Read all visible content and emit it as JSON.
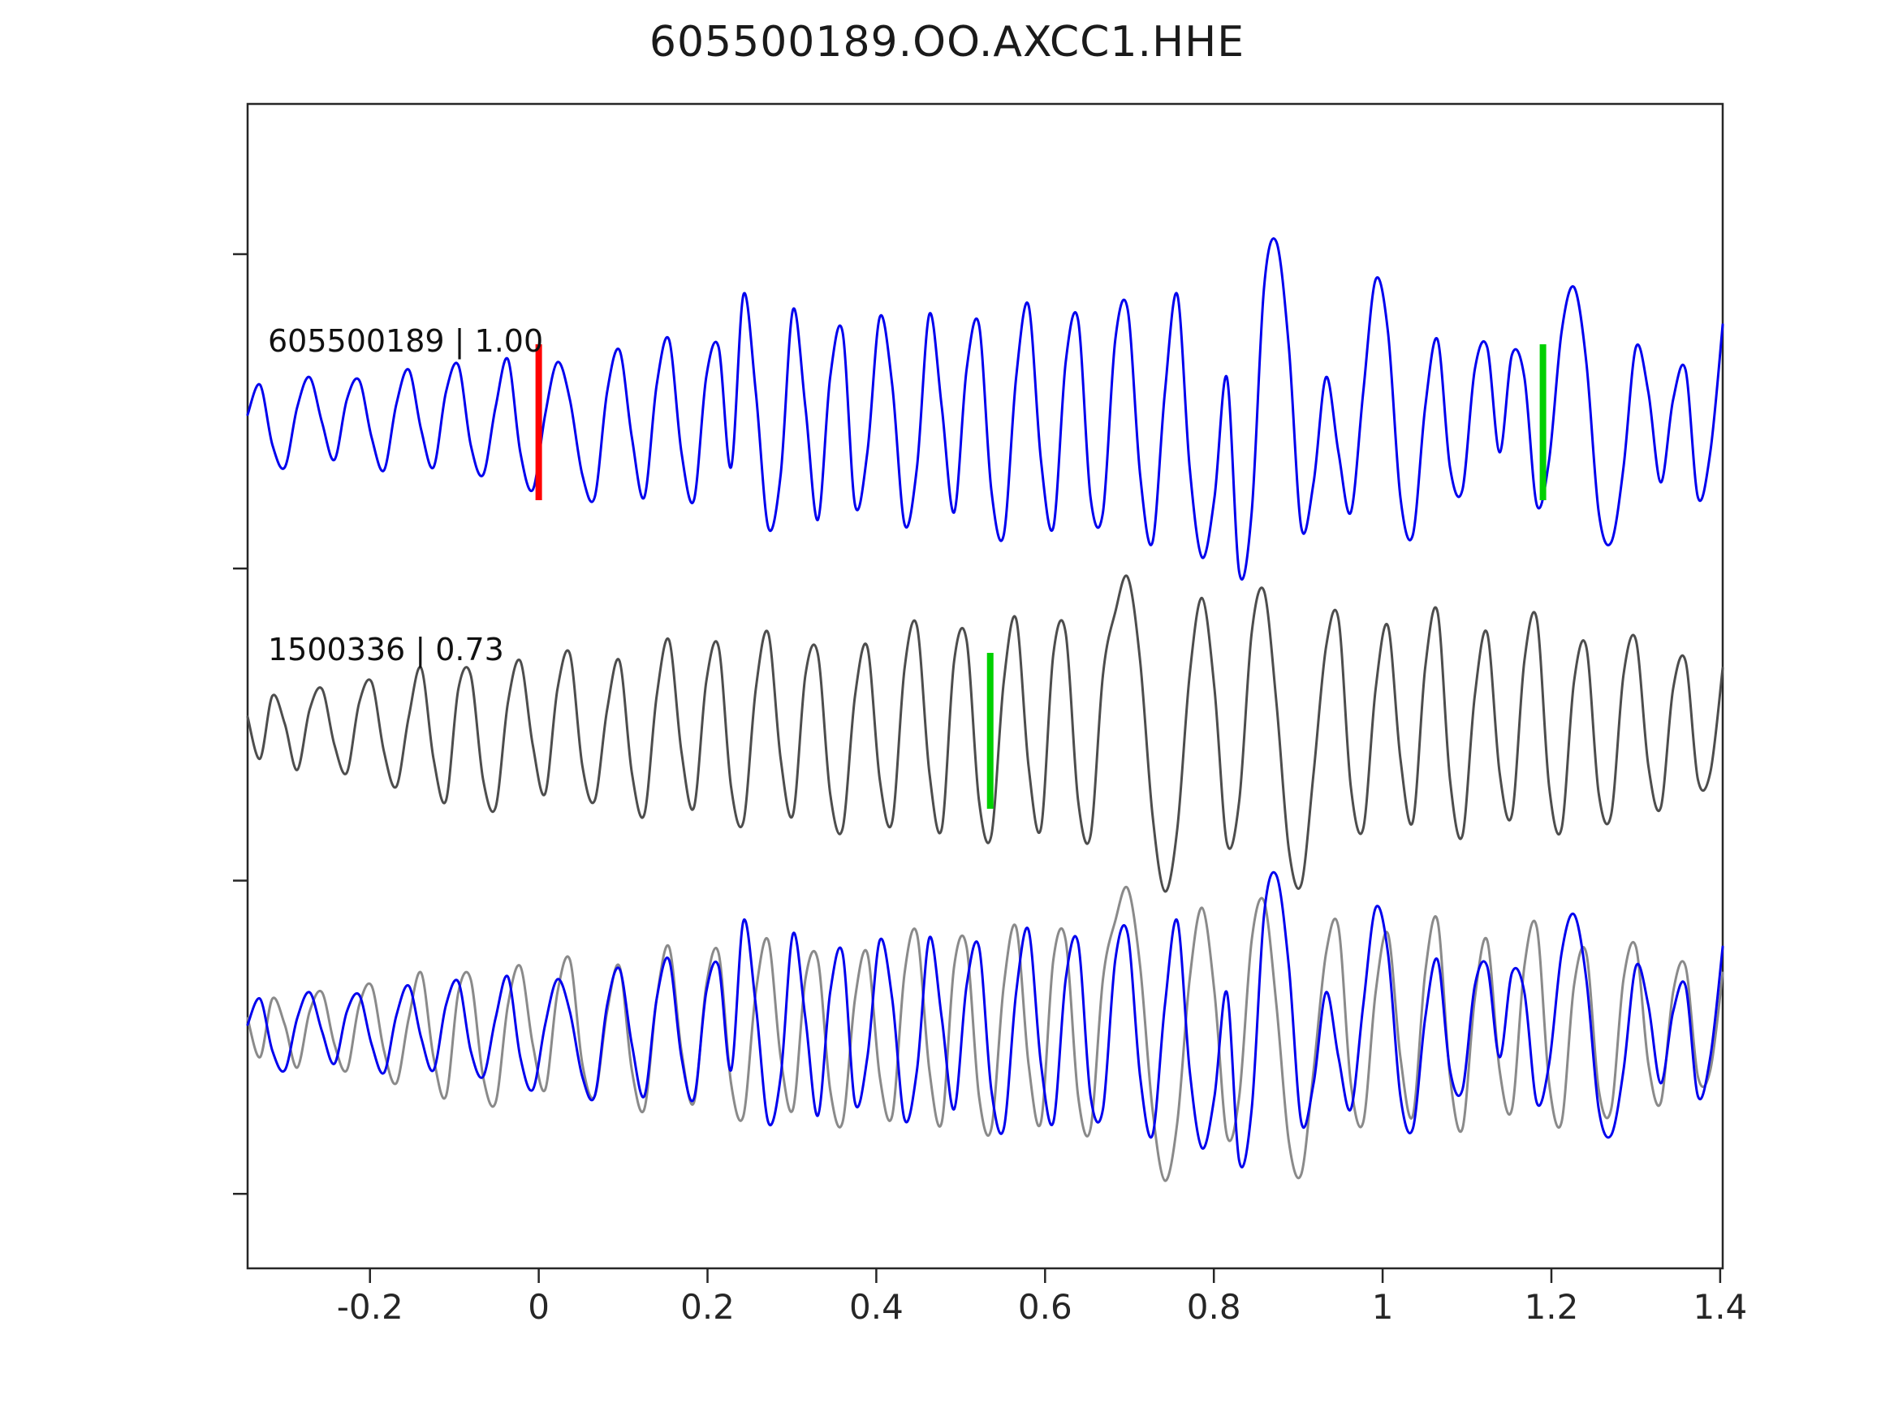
{
  "title": "605500189.OO.AXCC1.HHE",
  "colors": {
    "template_trace": "#0000ee",
    "detection_trace": "#4d4d4d",
    "overlay_detection_trace": "#8a8a8a",
    "pick_red": "#ff0000",
    "pick_green": "#00d000",
    "axis": "#262626",
    "text": "#111111"
  },
  "chart_data": {
    "type": "line",
    "title": "605500189.OO.AXCC1.HHE",
    "xlabel": "",
    "ylabel": "",
    "grid": false,
    "legend": "none",
    "xlim": [
      -0.345,
      1.403
    ],
    "x_ticks": [
      -0.2,
      0,
      0.2,
      0.4,
      0.6,
      0.8,
      1,
      1.2,
      1.4
    ],
    "x_tick_labels": [
      "-0.2",
      "0",
      "0.2",
      "0.4",
      "0.6",
      "0.8",
      "1",
      "1.2",
      "1.4"
    ],
    "note": "Waveform amplitudes are unlabeled in the figure; values below are normalized estimates sampled uniformly across xlim.",
    "traces": [
      {
        "name": "template",
        "label": "605500189 | 1.00",
        "id": "605500189",
        "correlation": "1.00",
        "color_key": "template_trace",
        "row": 0,
        "picks": [
          {
            "x": 0.0,
            "color_key": "pick_red",
            "name": "template-red-pick"
          },
          {
            "x": 1.19,
            "color_key": "pick_green",
            "name": "template-green-pick"
          }
        ],
        "values": [
          0.05,
          0.25,
          -0.15,
          -0.3,
          0.1,
          0.3,
          0.0,
          -0.25,
          0.15,
          0.28,
          -0.1,
          -0.32,
          0.12,
          0.35,
          -0.05,
          -0.3,
          0.2,
          0.38,
          -0.15,
          -0.35,
          0.1,
          0.42,
          -0.2,
          -0.45,
          0.05,
          0.4,
          0.15,
          -0.35,
          -0.5,
          0.2,
          0.48,
          -0.1,
          -0.5,
          0.25,
          0.55,
          -0.2,
          -0.52,
          0.3,
          0.5,
          -0.3,
          0.85,
          0.2,
          -0.7,
          -0.35,
          0.75,
          0.1,
          -0.65,
          0.3,
          0.6,
          -0.55,
          -0.2,
          0.7,
          0.25,
          -0.68,
          -0.3,
          0.72,
          0.1,
          -0.6,
          0.35,
          0.65,
          -0.45,
          -0.75,
          0.3,
          0.78,
          -0.25,
          -0.7,
          0.4,
          0.68,
          -0.5,
          -0.6,
          0.55,
          0.75,
          -0.35,
          -0.8,
          0.2,
          0.85,
          -0.3,
          -0.9,
          -0.5,
          0.3,
          -1.0,
          -0.6,
          0.9,
          1.2,
          0.5,
          -0.7,
          -0.4,
          0.3,
          -0.2,
          -0.6,
          0.2,
          0.95,
          0.6,
          -0.5,
          -0.75,
          0.1,
          0.55,
          -0.3,
          -0.45,
          0.35,
          0.5,
          -0.2,
          0.45,
          0.3,
          -0.55,
          -0.25,
          0.6,
          0.9,
          0.4,
          -0.6,
          -0.8,
          -0.3,
          0.5,
          0.2,
          -0.4,
          0.15,
          0.35,
          -0.5,
          -0.2,
          0.65
        ]
      },
      {
        "name": "detection",
        "label": "1500336 | 0.73",
        "id": "1500336",
        "correlation": "0.73",
        "color_key": "detection_trace",
        "row": 1,
        "picks": [
          {
            "x": 0.535,
            "color_key": "pick_green",
            "name": "detection-green-pick"
          }
        ],
        "values": [
          0.1,
          -0.2,
          0.25,
          0.05,
          -0.28,
          0.15,
          0.3,
          -0.1,
          -0.3,
          0.2,
          0.35,
          -0.15,
          -0.4,
          0.1,
          0.45,
          -0.2,
          -0.5,
          0.3,
          0.4,
          -0.35,
          -0.55,
          0.2,
          0.5,
          -0.1,
          -0.45,
          0.3,
          0.55,
          -0.25,
          -0.5,
          0.15,
          0.5,
          -0.3,
          -0.6,
          0.25,
          0.65,
          -0.15,
          -0.55,
          0.35,
          0.6,
          -0.4,
          -0.65,
          0.3,
          0.7,
          -0.2,
          -0.6,
          0.4,
          0.55,
          -0.45,
          -0.7,
          0.25,
          0.6,
          -0.35,
          -0.65,
          0.45,
          0.75,
          -0.3,
          -0.7,
          0.5,
          0.65,
          -0.5,
          -0.75,
          0.35,
          0.8,
          -0.25,
          -0.7,
          0.55,
          0.7,
          -0.5,
          -0.75,
          0.4,
          0.85,
          1.1,
          0.5,
          -0.6,
          -1.15,
          -0.7,
          0.4,
          0.95,
          0.3,
          -0.8,
          -0.5,
          0.7,
          1.0,
          0.2,
          -0.85,
          -1.1,
          -0.3,
          0.6,
          0.8,
          -0.4,
          -0.7,
          0.3,
          0.75,
          -0.2,
          -0.65,
          0.45,
          0.85,
          -0.35,
          -0.75,
          0.25,
          0.7,
          -0.3,
          -0.6,
          0.5,
          0.8,
          -0.4,
          -0.7,
          0.35,
          0.6,
          -0.45,
          -0.6,
          0.4,
          0.65,
          -0.25,
          -0.55,
          0.3,
          0.5,
          -0.35,
          -0.3,
          0.45
        ]
      },
      {
        "name": "overlay",
        "label": "",
        "row": 2,
        "components": [
          {
            "use": "detection",
            "color_key": "overlay_detection_trace"
          },
          {
            "use": "template",
            "color_key": "template_trace"
          }
        ]
      }
    ]
  }
}
